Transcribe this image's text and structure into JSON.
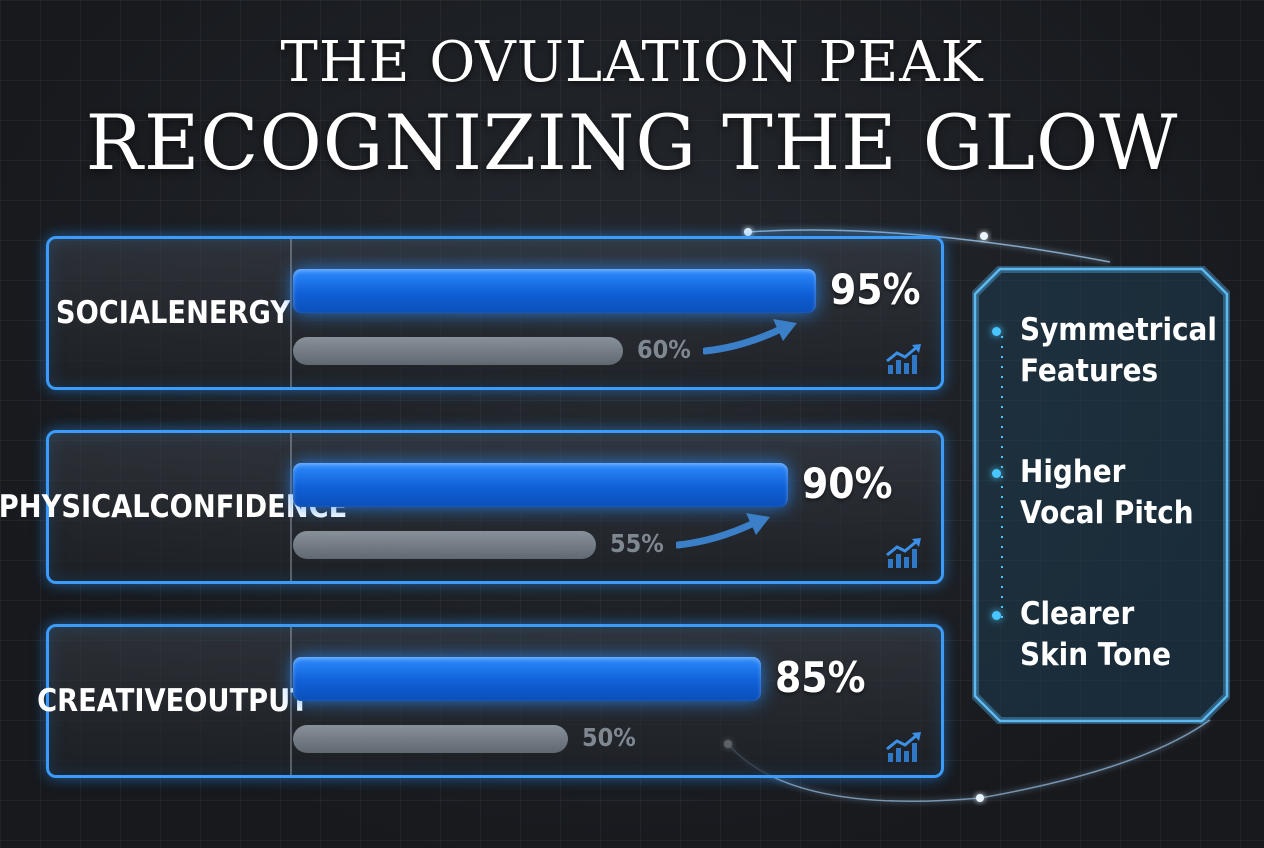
{
  "title": {
    "line1": "THE OVULATION PEAK",
    "line2": "RECOGNIZING THE GLOW"
  },
  "chart_data": {
    "type": "bar",
    "categories": [
      "SOCIAL ENERGY",
      "PHYSICAL CONFIDENCE",
      "CREATIVE OUTPUT"
    ],
    "category_lines": [
      [
        "SOCIAL",
        "ENERGY"
      ],
      [
        "PHYSICAL",
        "CONFIDENCE"
      ],
      [
        "CREATIVE",
        "OUTPUT"
      ]
    ],
    "series": [
      {
        "values": [
          95,
          90,
          85
        ],
        "labels": [
          "95%",
          "90%",
          "85%"
        ],
        "color": "#1e7bff"
      },
      {
        "values": [
          60,
          55,
          50
        ],
        "labels": [
          "60%",
          "55%",
          "50%"
        ],
        "color": "#8b949e"
      }
    ],
    "ylim": [
      0,
      100
    ],
    "grid": true
  },
  "sidebar": {
    "items": [
      {
        "lines": [
          "Symmetrical",
          "Features"
        ]
      },
      {
        "lines": [
          "Higher",
          "Vocal Pitch"
        ]
      },
      {
        "lines": [
          "Clearer",
          "Skin Tone"
        ]
      }
    ]
  },
  "colors": {
    "accent": "#3a9cff",
    "bar_primary": "#1e7bff",
    "bar_secondary": "#8b949e",
    "background": "#1c1f24",
    "dot": "#49c6ff"
  },
  "icons": {
    "trend": "trend-up-icon",
    "arrow": "curved-arrow-icon"
  }
}
